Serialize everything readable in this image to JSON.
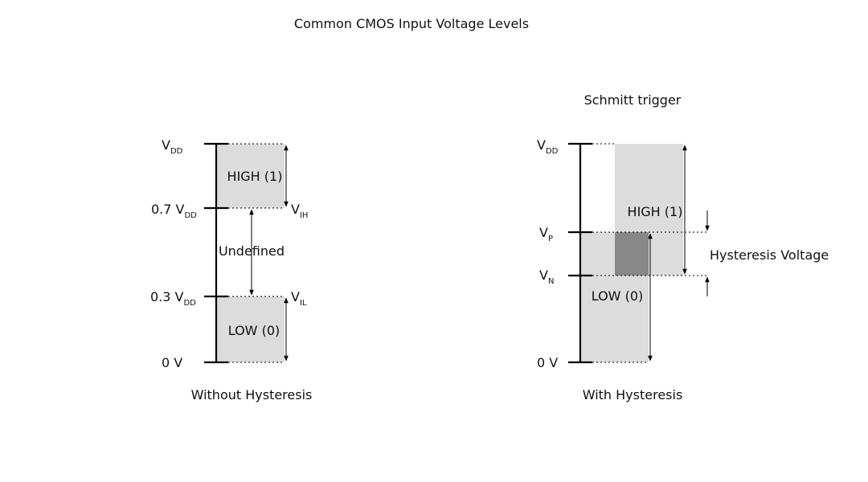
{
  "title": "Common CMOS Input Voltage Levels",
  "left": {
    "caption": "Without Hysteresis",
    "labels": {
      "vdd": "V",
      "vdd_sub": "DD",
      "v07": "0.7 V",
      "v07_sub": "DD",
      "v03": "0.3 V",
      "v03_sub": "DD",
      "zero": "0 V",
      "vih": "V",
      "vih_sub": "IH",
      "vil": "V",
      "vil_sub": "IL"
    },
    "regions": {
      "high": "HIGH (1)",
      "undefined": "Undefined",
      "low": "LOW (0)"
    }
  },
  "right": {
    "heading": "Schmitt trigger",
    "caption": "With Hysteresis",
    "labels": {
      "vdd": "V",
      "vdd_sub": "DD",
      "vp": "V",
      "vp_sub": "P",
      "vn": "V",
      "vn_sub": "N",
      "zero": "0 V"
    },
    "regions": {
      "high": "HIGH (1)",
      "low": "LOW (0)"
    },
    "hysteresis_label": "Hysteresis Voltage"
  },
  "colors": {
    "region_fill": "#dcdcdc",
    "overlap_fill": "#888888"
  }
}
